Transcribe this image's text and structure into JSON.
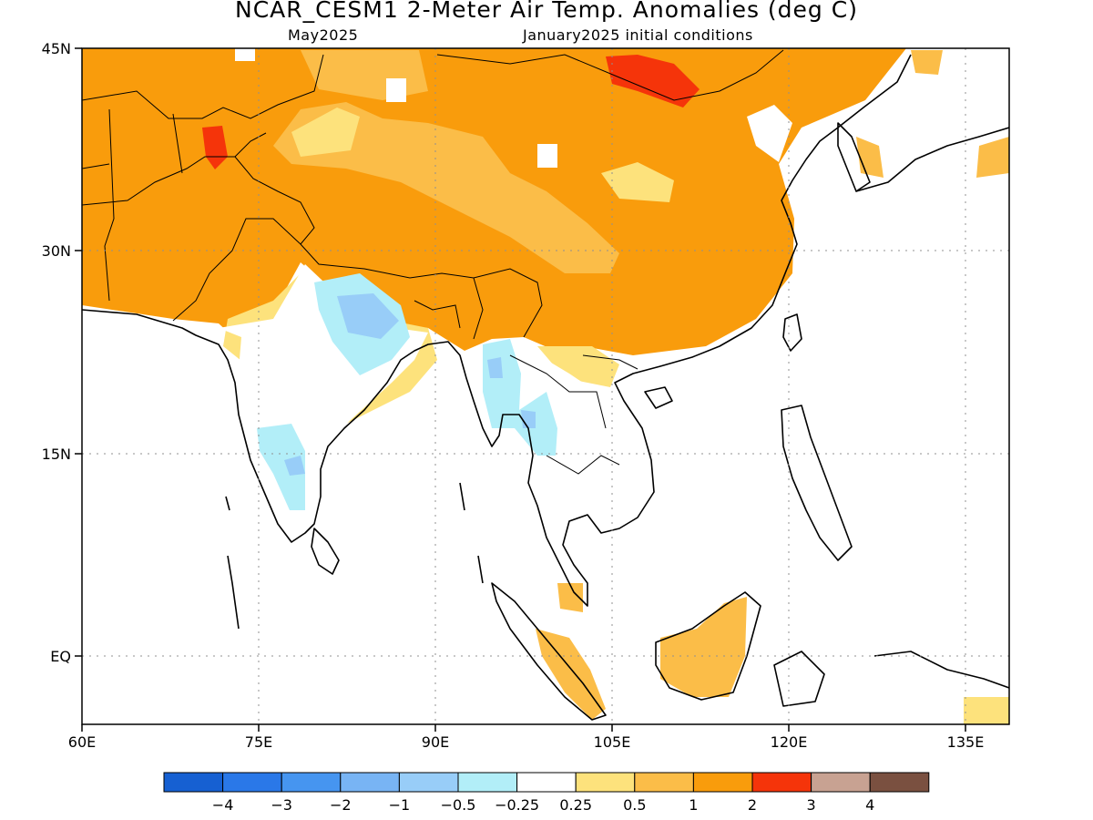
{
  "title": "NCAR_CESM1 2-Meter Air Temp. Anomalies (deg C)",
  "subtitle_left": "May2025",
  "subtitle_right": "January2025 initial conditions",
  "axes": {
    "x_ticks": [
      "60E",
      "75E",
      "90E",
      "105E",
      "120E",
      "135E"
    ],
    "y_ticks": [
      "45N",
      "30N",
      "15N",
      "EQ"
    ]
  },
  "colorbar": {
    "colors": [
      "#1660d2",
      "#2a78e8",
      "#4695f0",
      "#78b4f4",
      "#98cdf8",
      "#b2eef8",
      "#ffffff",
      "#fde27c",
      "#fbbd48",
      "#f99c0c",
      "#f5340a",
      "#c8a292",
      "#7a5040"
    ],
    "labels": [
      "-4",
      "-3",
      "-2",
      "-1",
      "-0.5",
      "-0.25",
      "0.25",
      "0.5",
      "1",
      "2",
      "3",
      "4"
    ]
  },
  "chart_data": {
    "type": "heatmap",
    "variable": "2-Meter Air Temp. Anomalies",
    "units": "deg C",
    "valid_month": "May2025",
    "initial_conditions": "January2025",
    "lon_range": [
      60,
      140
    ],
    "lat_range": [
      -5,
      45
    ],
    "regions": [
      {
        "name": "western",
        "level": 2,
        "polygon": [
          [
            60,
            45
          ],
          [
            60,
            27
          ],
          [
            68,
            26
          ],
          [
            73,
            25
          ],
          [
            79,
            22.5
          ],
          [
            83,
            26
          ],
          [
            88,
            27.5
          ],
          [
            92,
            27
          ],
          [
            98,
            28
          ],
          [
            100,
            25
          ],
          [
            103,
            22.5
          ],
          [
            107,
            22
          ],
          [
            114,
            22
          ],
          [
            120,
            26
          ],
          [
            121,
            30
          ],
          [
            122,
            35
          ],
          [
            119,
            40
          ],
          [
            121,
            44
          ],
          [
            125,
            45
          ]
        ]
      },
      {
        "name": "cold_n_india",
        "level": -0.25,
        "polygon": [
          [
            79,
            28
          ],
          [
            84,
            29
          ],
          [
            87,
            26
          ],
          [
            85,
            23
          ],
          [
            82,
            22.5
          ],
          [
            81,
            25
          ]
        ]
      },
      {
        "name": "cold_n_india_core",
        "level": -0.5,
        "polygon": [
          [
            81,
            27
          ],
          [
            84,
            27.5
          ],
          [
            86,
            25.5
          ],
          [
            84,
            24
          ],
          [
            82,
            24.5
          ]
        ]
      },
      {
        "name": "cold_central_india",
        "level": -0.25,
        "polygon": [
          [
            74.5,
            17.5
          ],
          [
            77,
            18
          ],
          [
            78,
            14
          ],
          [
            77,
            12
          ],
          [
            76,
            14.5
          ]
        ]
      },
      {
        "name": "cold_myanmar",
        "level": -0.25,
        "polygon": [
          [
            93.5,
            25
          ],
          [
            96,
            25.5
          ],
          [
            97,
            21
          ],
          [
            98,
            19
          ],
          [
            101,
            17.5
          ],
          [
            100,
            15.5
          ],
          [
            97,
            17
          ],
          [
            95,
            18
          ],
          [
            94,
            21
          ]
        ]
      },
      {
        "name": "hot_pakistan",
        "level": 2,
        "polygon": [
          [
            71,
            43
          ],
          [
            72,
            42.5
          ],
          [
            72.5,
            39.5
          ],
          [
            71.5,
            38.2
          ],
          [
            70.5,
            40
          ]
        ]
      },
      {
        "name": "hot_mongolia",
        "level": 2,
        "polygon": [
          [
            104,
            44.5
          ],
          [
            110,
            44.5
          ],
          [
            113,
            42.2
          ],
          [
            110,
            41.5
          ],
          [
            105,
            41.8
          ]
        ]
      },
      {
        "name": "borneo",
        "level": 1,
        "polygon": [
          [
            109,
            1
          ],
          [
            112,
            2
          ],
          [
            115,
            3
          ],
          [
            117.5,
            4
          ],
          [
            117,
            1
          ],
          [
            116,
            -2
          ],
          [
            113,
            -3.5
          ],
          [
            110,
            -3
          ]
        ]
      },
      {
        "name": "sumatra",
        "level": 1,
        "polygon": [
          [
            97,
            3
          ],
          [
            100,
            2
          ],
          [
            103,
            0
          ],
          [
            105,
            -4
          ],
          [
            104,
            -5
          ],
          [
            101,
            -1
          ],
          [
            98,
            1.5
          ]
        ]
      },
      {
        "name": "malay",
        "level": 0.5,
        "polygon": [
          [
            100.5,
            7
          ],
          [
            103,
            5
          ],
          [
            103.5,
            2
          ],
          [
            102.5,
            3.5
          ],
          [
            101,
            5.5
          ]
        ]
      }
    ]
  }
}
